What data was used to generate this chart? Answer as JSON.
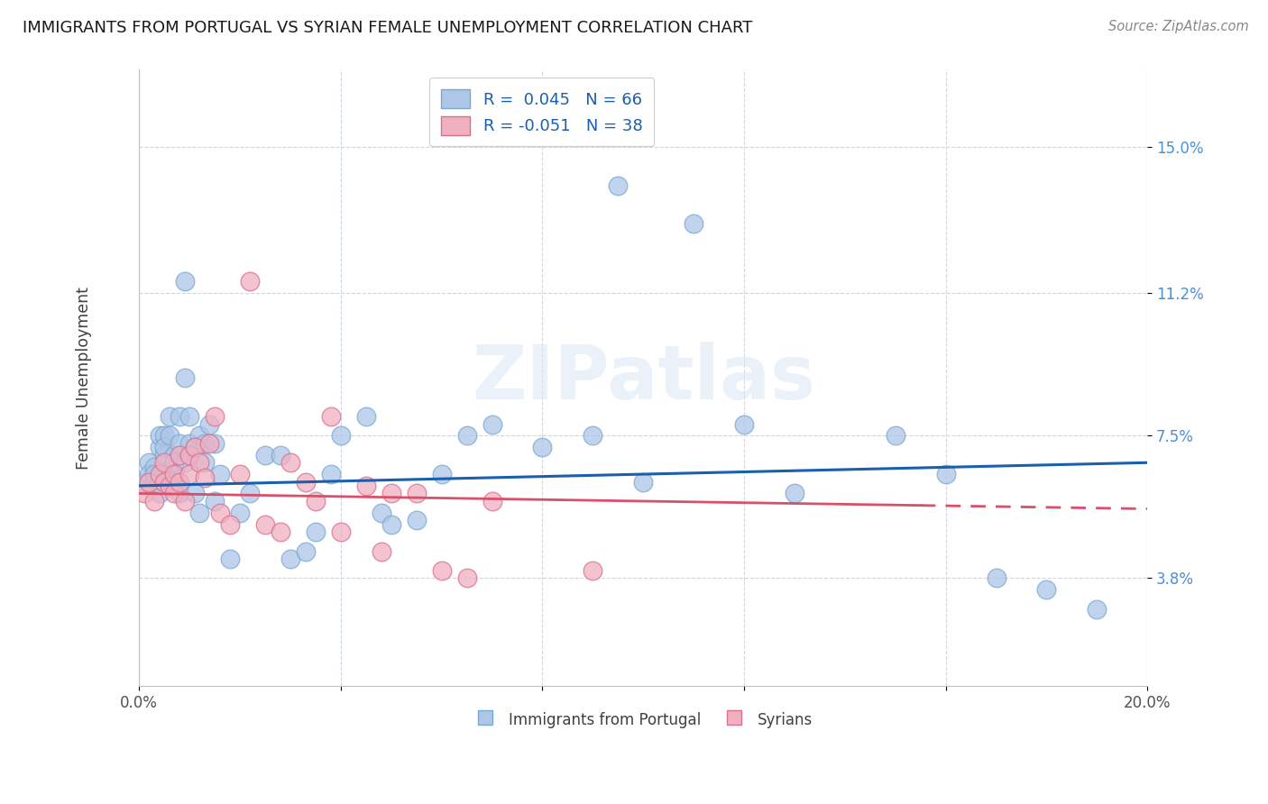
{
  "title": "IMMIGRANTS FROM PORTUGAL VS SYRIAN FEMALE UNEMPLOYMENT CORRELATION CHART",
  "source": "Source: ZipAtlas.com",
  "ylabel": "Female Unemployment",
  "xlim": [
    0.0,
    0.2
  ],
  "ylim": [
    0.01,
    0.17
  ],
  "ytick_positions": [
    0.038,
    0.075,
    0.112,
    0.15
  ],
  "ytick_labels": [
    "3.8%",
    "7.5%",
    "11.2%",
    "15.0%"
  ],
  "series1_label": "Immigrants from Portugal",
  "series1_R": "0.045",
  "series1_N": "66",
  "series1_color": "#aec6e8",
  "series1_edge": "#7aaad0",
  "series2_label": "Syrians",
  "series2_R": "-0.051",
  "series2_N": "38",
  "series2_color": "#f0b0c0",
  "series2_edge": "#d97090",
  "trend1_color": "#1a5fad",
  "trend2_color": "#d9506a",
  "background_color": "#ffffff",
  "grid_color": "#c8d8e8",
  "watermark": "ZIPatlas",
  "series1_x": [
    0.001,
    0.002,
    0.002,
    0.003,
    0.003,
    0.003,
    0.004,
    0.004,
    0.004,
    0.005,
    0.005,
    0.005,
    0.006,
    0.006,
    0.006,
    0.006,
    0.007,
    0.007,
    0.007,
    0.008,
    0.008,
    0.008,
    0.009,
    0.009,
    0.009,
    0.01,
    0.01,
    0.011,
    0.011,
    0.012,
    0.012,
    0.013,
    0.013,
    0.014,
    0.015,
    0.015,
    0.016,
    0.018,
    0.02,
    0.022,
    0.025,
    0.028,
    0.03,
    0.033,
    0.035,
    0.038,
    0.04,
    0.045,
    0.048,
    0.05,
    0.055,
    0.06,
    0.065,
    0.07,
    0.08,
    0.09,
    0.095,
    0.1,
    0.11,
    0.12,
    0.13,
    0.15,
    0.16,
    0.17,
    0.18,
    0.19
  ],
  "series1_y": [
    0.063,
    0.068,
    0.065,
    0.063,
    0.067,
    0.065,
    0.06,
    0.072,
    0.075,
    0.07,
    0.075,
    0.072,
    0.065,
    0.08,
    0.075,
    0.063,
    0.07,
    0.068,
    0.063,
    0.08,
    0.073,
    0.06,
    0.115,
    0.09,
    0.068,
    0.08,
    0.073,
    0.072,
    0.06,
    0.075,
    0.055,
    0.073,
    0.068,
    0.078,
    0.058,
    0.073,
    0.065,
    0.043,
    0.055,
    0.06,
    0.07,
    0.07,
    0.043,
    0.045,
    0.05,
    0.065,
    0.075,
    0.08,
    0.055,
    0.052,
    0.053,
    0.065,
    0.075,
    0.078,
    0.072,
    0.075,
    0.14,
    0.063,
    0.13,
    0.078,
    0.06,
    0.075,
    0.065,
    0.038,
    0.035,
    0.03
  ],
  "series2_x": [
    0.001,
    0.002,
    0.003,
    0.004,
    0.005,
    0.005,
    0.006,
    0.007,
    0.007,
    0.008,
    0.008,
    0.009,
    0.01,
    0.01,
    0.011,
    0.012,
    0.013,
    0.014,
    0.015,
    0.016,
    0.018,
    0.02,
    0.022,
    0.025,
    0.028,
    0.03,
    0.033,
    0.035,
    0.038,
    0.04,
    0.045,
    0.048,
    0.05,
    0.055,
    0.06,
    0.065,
    0.07,
    0.09
  ],
  "series2_y": [
    0.06,
    0.063,
    0.058,
    0.065,
    0.068,
    0.063,
    0.062,
    0.065,
    0.06,
    0.07,
    0.063,
    0.058,
    0.065,
    0.07,
    0.072,
    0.068,
    0.064,
    0.073,
    0.08,
    0.055,
    0.052,
    0.065,
    0.115,
    0.052,
    0.05,
    0.068,
    0.063,
    0.058,
    0.08,
    0.05,
    0.062,
    0.045,
    0.06,
    0.06,
    0.04,
    0.038,
    0.058,
    0.04
  ]
}
